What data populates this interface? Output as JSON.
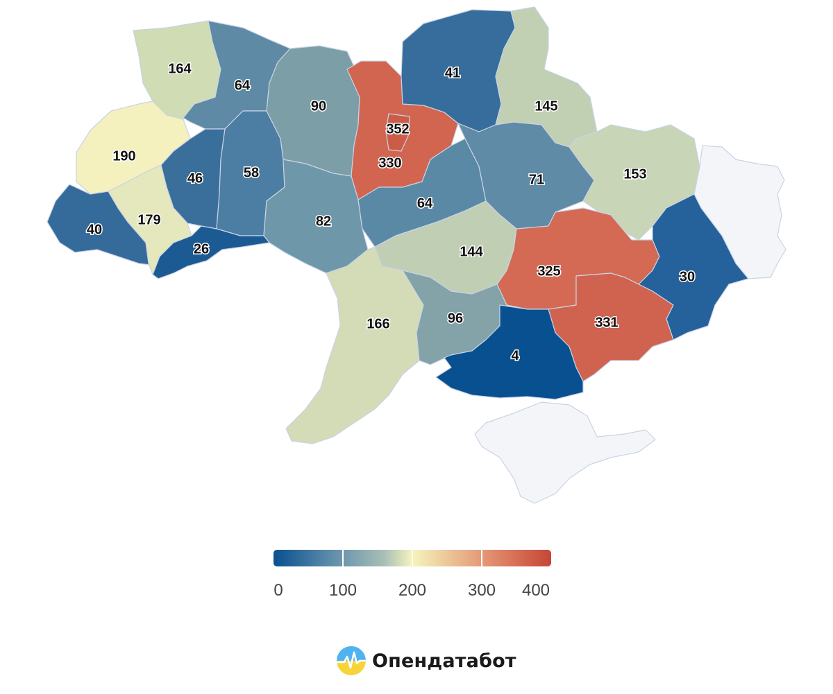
{
  "regions": [
    {
      "id": "volyn",
      "value": 164,
      "color": "#d0dcb4"
    },
    {
      "id": "rivne",
      "value": 64,
      "color": "#5e8aa6"
    },
    {
      "id": "zhytomyr",
      "value": 90,
      "color": "#7b9ea7"
    },
    {
      "id": "kyiv-oblast",
      "value": 330,
      "color": "#d26550"
    },
    {
      "id": "kyiv-city",
      "value": 352,
      "color": "#cc5c48"
    },
    {
      "id": "chernihiv",
      "value": 41,
      "color": "#376d9c"
    },
    {
      "id": "sumy",
      "value": 145,
      "color": "#c1cfb3"
    },
    {
      "id": "lviv",
      "value": 190,
      "color": "#f4f1bf"
    },
    {
      "id": "ternopil",
      "value": 46,
      "color": "#3a6f9c"
    },
    {
      "id": "khmelnytskyi",
      "value": 58,
      "color": "#4c7ea3"
    },
    {
      "id": "vinnytsia",
      "value": 82,
      "color": "#6f97aa"
    },
    {
      "id": "cherkasy",
      "value": 64,
      "color": "#5a89a6"
    },
    {
      "id": "poltava",
      "value": 71,
      "color": "#5f8ba6"
    },
    {
      "id": "kharkiv",
      "value": 153,
      "color": "#c8d5b6"
    },
    {
      "id": "luhansk",
      "value": null,
      "color": "#f4f5f9"
    },
    {
      "id": "zakarpattia",
      "value": 40,
      "color": "#356b9b"
    },
    {
      "id": "ivano-frankivsk",
      "value": 179,
      "color": "#e4e8bc"
    },
    {
      "id": "chernivtsi",
      "value": 26,
      "color": "#1c5a94"
    },
    {
      "id": "kirovohrad",
      "value": 144,
      "color": "#c0cfb4"
    },
    {
      "id": "dnipropetrovsk",
      "value": 325,
      "color": "#d46a54"
    },
    {
      "id": "donetsk",
      "value": 30,
      "color": "#25619a"
    },
    {
      "id": "odesa",
      "value": 166,
      "color": "#d3dcb6"
    },
    {
      "id": "mykolaiv",
      "value": 96,
      "color": "#83a3a9"
    },
    {
      "id": "zaporizhzhia",
      "value": 331,
      "color": "#d0634f"
    },
    {
      "id": "kherson",
      "value": 4,
      "color": "#08508f"
    },
    {
      "id": "crimea",
      "value": null,
      "color": "#f4f5f9"
    }
  ],
  "legend": {
    "labels": [
      "0",
      "100",
      "200",
      "300",
      "400"
    ],
    "min": 0,
    "max": 400
  },
  "brand": {
    "name": "Опендатабот"
  }
}
